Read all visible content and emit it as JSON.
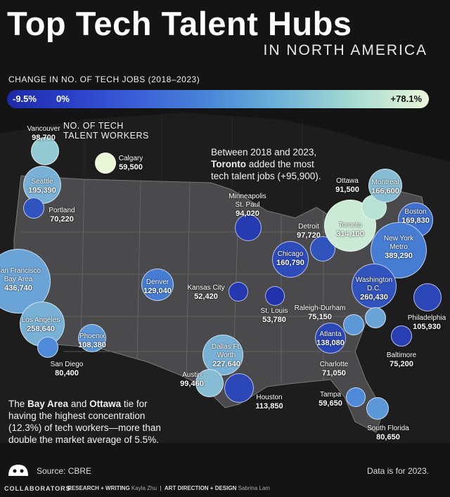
{
  "header": {
    "title": "Top Tech Talent Hubs",
    "subtitle": "IN NORTH AMERICA"
  },
  "legend": {
    "title": "CHANGE IN NO. OF TECH JOBS (2018–2023)",
    "min_label": "-9.5%",
    "zero_label": "0%",
    "max_label": "+78.1%",
    "size_title": "NO. OF TECH TALENT WORKERS",
    "colors": [
      "#1d2aa8",
      "#4a86d8",
      "#a6dbd2",
      "#eaf6d8"
    ]
  },
  "cities": [
    {
      "name": "Vancouver",
      "workers": "98,700",
      "growth_level": 0.6
    },
    {
      "name": "Calgary",
      "workers": "59,500",
      "growth_level": 1.0
    },
    {
      "name": "Seattle",
      "workers": "195,390",
      "growth_level": 0.5
    },
    {
      "name": "Portland",
      "workers": "70,220",
      "growth_level": 0.15
    },
    {
      "name": "San Francisco Bay Area",
      "workers": "436,740",
      "growth_level": 0.45
    },
    {
      "name": "Los Angeles",
      "workers": "258,640",
      "growth_level": 0.5
    },
    {
      "name": "San Diego",
      "workers": "80,400",
      "growth_level": 0.35
    },
    {
      "name": "Phoenix",
      "workers": "108,380",
      "growth_level": 0.4
    },
    {
      "name": "Denver",
      "workers": "129,040",
      "growth_level": 0.3
    },
    {
      "name": "Kansas City",
      "workers": "52,420",
      "growth_level": 0.05
    },
    {
      "name": "St. Louis",
      "workers": "53,780",
      "growth_level": 0.03
    },
    {
      "name": "Minneapolis St. Paul",
      "workers": "94,020",
      "growth_level": 0.06
    },
    {
      "name": "Dallas Ft. Worth",
      "workers": "227,640",
      "growth_level": 0.5
    },
    {
      "name": "Austin",
      "workers": "99,460",
      "growth_level": 0.55
    },
    {
      "name": "Houston",
      "workers": "113,850",
      "growth_level": 0.1
    },
    {
      "name": "Chicago",
      "workers": "160,790",
      "growth_level": 0.12
    },
    {
      "name": "Detroit",
      "workers": "97,720",
      "growth_level": 0.15
    },
    {
      "name": "Toronto",
      "workers": "314,100",
      "growth_level": 0.85
    },
    {
      "name": "Ottawa",
      "workers": "91,500",
      "growth_level": 0.75
    },
    {
      "name": "Montreal",
      "workers": "166,600",
      "growth_level": 0.55
    },
    {
      "name": "Boston",
      "workers": "169,830",
      "growth_level": 0.25
    },
    {
      "name": "New York Metro",
      "workers": "389,290",
      "growth_level": 0.3
    },
    {
      "name": "Philadelphia",
      "workers": "105,930",
      "growth_level": 0.1
    },
    {
      "name": "Baltimore",
      "workers": "75,200",
      "growth_level": 0.08
    },
    {
      "name": "Washington D.C.",
      "workers": "260,430",
      "growth_level": 0.15
    },
    {
      "name": "Raleigh-Durham",
      "workers": "75,150",
      "growth_level": 0.45
    },
    {
      "name": "Atlanta",
      "workers": "138,080",
      "growth_level": 0.1
    },
    {
      "name": "Charlotte",
      "workers": "71,050",
      "growth_level": 0.4
    },
    {
      "name": "Tampa",
      "workers": "59,650",
      "growth_level": 0.35
    },
    {
      "name": "South Florida",
      "workers": "80,650",
      "growth_level": 0.4
    }
  ],
  "annotations": {
    "toronto_note_pre": "Between 2018 and 2023,",
    "toronto_bold": "Toronto",
    "toronto_note_post": " added the most tech talent jobs (+95,900).",
    "bay_bold1": "Bay Area",
    "and": " and ",
    "bay_bold2": "Ottawa",
    "bay_the": "The ",
    "bay_note_post": " tie for having the highest concentration (12.3%) of tech workers—more than double the market average of 5.5%."
  },
  "footer": {
    "source": "Source: CBRE",
    "data_note": "Data is for 2023.",
    "brand": "COLLABORATORS",
    "credits_research": "RESEARCH + WRITING",
    "credits_research_name": "Kayla Zhu",
    "credits_design": "ART DIRECTION + DESIGN",
    "credits_design_name": "Sabrina Lam"
  }
}
